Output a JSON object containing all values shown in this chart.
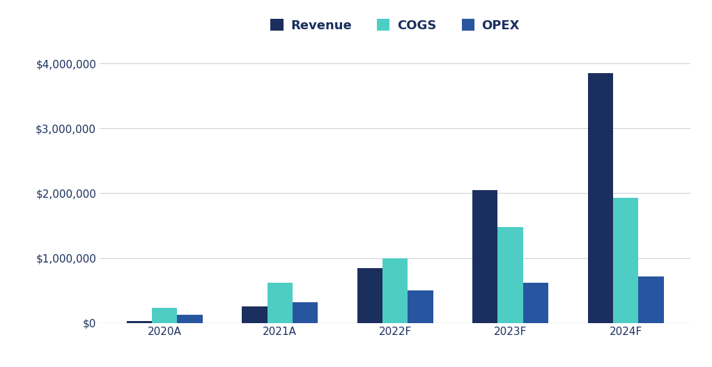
{
  "categories": [
    "2020A",
    "2021A",
    "2022F",
    "2023F",
    "2024F"
  ],
  "revenue": [
    30000,
    250000,
    850000,
    2050000,
    3850000
  ],
  "cogs": [
    230000,
    620000,
    1000000,
    1480000,
    1930000
  ],
  "opex": [
    130000,
    320000,
    500000,
    620000,
    720000
  ],
  "revenue_color": "#1b2f5e",
  "cogs_color": "#4ecdc4",
  "opex_color": "#2855a0",
  "legend_labels": [
    "Revenue",
    "COGS",
    "OPEX"
  ],
  "ylim": [
    0,
    4300000
  ],
  "yticks": [
    0,
    1000000,
    2000000,
    3000000,
    4000000
  ],
  "background_color": "#ffffff",
  "grid_color": "#c8cdd6",
  "bar_width": 0.22,
  "legend_fontsize": 13,
  "tick_fontsize": 11,
  "tick_color": "#1b2f5e",
  "ylabel_color": "#1b2f5e"
}
